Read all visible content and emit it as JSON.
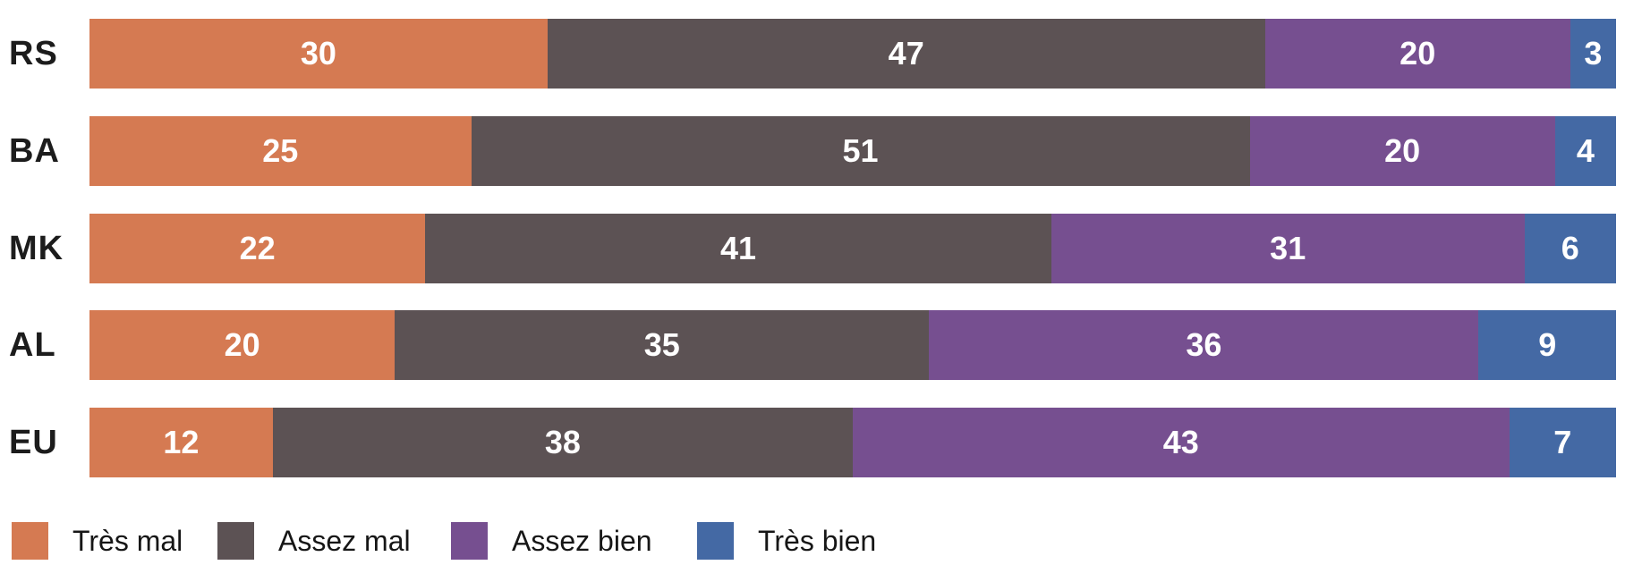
{
  "chart_data": {
    "type": "bar",
    "variant": "horizontal-stacked-100",
    "title": "",
    "xlabel": "",
    "ylabel": "",
    "xlim": [
      0,
      100
    ],
    "grid": false,
    "value_labels": "inside-centered-white",
    "legend_position": "bottom-left",
    "categories": [
      "RS",
      "BA",
      "MK",
      "AL",
      "EU"
    ],
    "series": [
      {
        "name": "Très mal",
        "color": "#D57A52",
        "values": [
          30,
          25,
          22,
          20,
          12
        ]
      },
      {
        "name": "Assez mal",
        "color": "#5C5254",
        "values": [
          47,
          51,
          41,
          35,
          38
        ]
      },
      {
        "name": "Assez bien",
        "color": "#764F90",
        "values": [
          20,
          20,
          31,
          36,
          43
        ]
      },
      {
        "name": "Très bien",
        "color": "#4469A4",
        "values": [
          3,
          4,
          6,
          9,
          7
        ]
      }
    ]
  }
}
